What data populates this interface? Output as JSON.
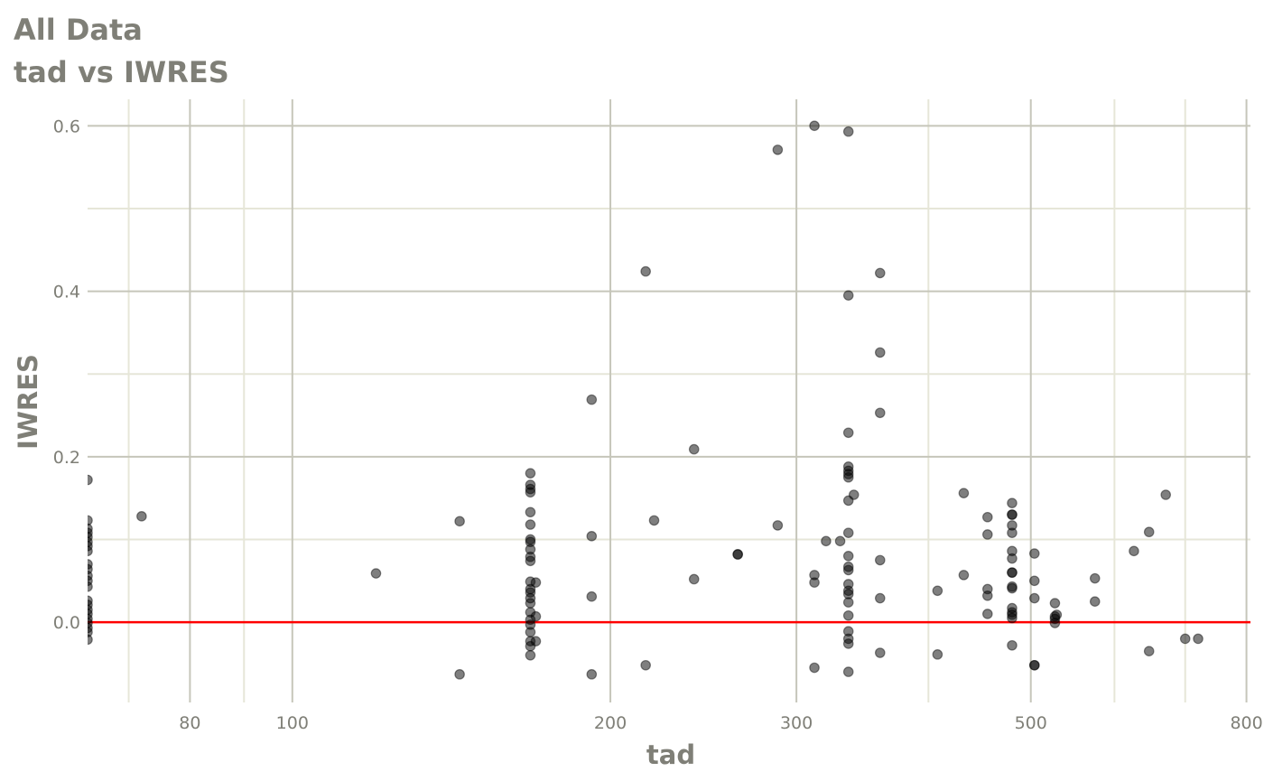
{
  "chart_data": {
    "type": "scatter",
    "title": "All Data",
    "subtitle": "tad vs IWRES",
    "xlabel": "tad",
    "ylabel": "IWRES",
    "x_scale": "log",
    "xlim": [
      64,
      807
    ],
    "ylim": [
      -0.097,
      0.632
    ],
    "grid": true,
    "x_major_ticks": [
      80,
      100,
      200,
      300,
      500,
      800
    ],
    "x_tick_labels": [
      "80",
      "100",
      "200",
      "300",
      "500",
      "800"
    ],
    "x_minor_ticks": [
      70,
      90,
      400,
      600,
      700
    ],
    "y_major_ticks": [
      0.0,
      0.2,
      0.4,
      0.6
    ],
    "y_tick_labels": [
      "0.0",
      "0.2",
      "0.4",
      "0.6"
    ],
    "y_minor_ticks": [
      0.1,
      0.3,
      0.5
    ],
    "reference_line": {
      "y": 0,
      "color": "#ff0000"
    },
    "point_color": "#000000",
    "point_alpha": 0.5,
    "points": [
      [
        64,
        0.172
      ],
      [
        64,
        0.123
      ],
      [
        64,
        0.113
      ],
      [
        64,
        0.108
      ],
      [
        64,
        0.103
      ],
      [
        64,
        0.097
      ],
      [
        64,
        0.092
      ],
      [
        64,
        0.086
      ],
      [
        64,
        0.07
      ],
      [
        64,
        0.064
      ],
      [
        64,
        0.056
      ],
      [
        64,
        0.05
      ],
      [
        64,
        0.043
      ],
      [
        64,
        0.026
      ],
      [
        64,
        0.021
      ],
      [
        64,
        0.015
      ],
      [
        64,
        0.01
      ],
      [
        64,
        0.004
      ],
      [
        64,
        -0.001
      ],
      [
        64,
        -0.007
      ],
      [
        64,
        -0.012
      ],
      [
        64,
        -0.021
      ],
      [
        72,
        0.128
      ],
      [
        120,
        0.059
      ],
      [
        144,
        0.122
      ],
      [
        144,
        -0.063
      ],
      [
        168,
        0.18
      ],
      [
        168,
        0.166
      ],
      [
        168,
        0.161
      ],
      [
        168,
        0.157
      ],
      [
        168,
        0.133
      ],
      [
        168,
        0.118
      ],
      [
        168,
        0.1
      ],
      [
        168,
        0.097
      ],
      [
        168,
        0.088
      ],
      [
        168,
        0.079
      ],
      [
        168,
        0.074
      ],
      [
        168,
        0.049
      ],
      [
        168,
        0.04
      ],
      [
        168,
        0.036
      ],
      [
        168,
        0.029
      ],
      [
        168,
        0.023
      ],
      [
        168,
        0.012
      ],
      [
        168,
        0.003
      ],
      [
        168,
        -0.003
      ],
      [
        168,
        -0.012
      ],
      [
        168,
        -0.023
      ],
      [
        168,
        -0.029
      ],
      [
        168,
        -0.04
      ],
      [
        170,
        0.048
      ],
      [
        170,
        0.007
      ],
      [
        170,
        -0.023
      ],
      [
        192,
        0.269
      ],
      [
        192,
        0.104
      ],
      [
        192,
        0.031
      ],
      [
        192,
        -0.063
      ],
      [
        216,
        0.424
      ],
      [
        216,
        -0.052
      ],
      [
        220,
        0.123
      ],
      [
        240,
        0.209
      ],
      [
        240,
        0.052
      ],
      [
        264,
        0.082
      ],
      [
        264,
        0.082
      ],
      [
        288,
        0.571
      ],
      [
        288,
        0.117
      ],
      [
        312,
        0.6
      ],
      [
        312,
        0.057
      ],
      [
        312,
        0.048
      ],
      [
        312,
        -0.055
      ],
      [
        320,
        0.098
      ],
      [
        330,
        0.098
      ],
      [
        336,
        0.593
      ],
      [
        336,
        0.395
      ],
      [
        336,
        0.229
      ],
      [
        336,
        0.188
      ],
      [
        336,
        0.183
      ],
      [
        336,
        0.179
      ],
      [
        336,
        0.175
      ],
      [
        336,
        0.147
      ],
      [
        336,
        0.108
      ],
      [
        336,
        0.08
      ],
      [
        336,
        0.067
      ],
      [
        336,
        0.063
      ],
      [
        336,
        0.046
      ],
      [
        336,
        0.038
      ],
      [
        336,
        0.034
      ],
      [
        336,
        0.024
      ],
      [
        336,
        0.008
      ],
      [
        336,
        -0.011
      ],
      [
        336,
        -0.02
      ],
      [
        336,
        -0.026
      ],
      [
        336,
        -0.06
      ],
      [
        340,
        0.154
      ],
      [
        360,
        0.422
      ],
      [
        360,
        0.326
      ],
      [
        360,
        0.253
      ],
      [
        360,
        0.075
      ],
      [
        360,
        0.029
      ],
      [
        360,
        -0.037
      ],
      [
        408,
        0.038
      ],
      [
        408,
        -0.039
      ],
      [
        432,
        0.156
      ],
      [
        432,
        0.057
      ],
      [
        455,
        0.127
      ],
      [
        455,
        0.106
      ],
      [
        455,
        0.04
      ],
      [
        455,
        0.032
      ],
      [
        455,
        0.01
      ],
      [
        480,
        0.144
      ],
      [
        480,
        0.13
      ],
      [
        480,
        0.13
      ],
      [
        480,
        0.117
      ],
      [
        480,
        0.108
      ],
      [
        480,
        0.086
      ],
      [
        480,
        0.077
      ],
      [
        480,
        0.06
      ],
      [
        480,
        0.06
      ],
      [
        480,
        0.043
      ],
      [
        480,
        0.041
      ],
      [
        480,
        0.017
      ],
      [
        480,
        0.012
      ],
      [
        480,
        0.009
      ],
      [
        480,
        0.005
      ],
      [
        480,
        -0.028
      ],
      [
        504,
        0.083
      ],
      [
        504,
        0.05
      ],
      [
        504,
        0.029
      ],
      [
        504,
        -0.052
      ],
      [
        504,
        -0.052
      ],
      [
        527,
        0.023
      ],
      [
        527,
        0.007
      ],
      [
        527,
        0.004
      ],
      [
        527,
        -0.001
      ],
      [
        529,
        0.009
      ],
      [
        575,
        0.053
      ],
      [
        575,
        0.025
      ],
      [
        626,
        0.086
      ],
      [
        647,
        0.109
      ],
      [
        647,
        -0.035
      ],
      [
        671,
        0.154
      ],
      [
        700,
        -0.02
      ],
      [
        720,
        -0.02
      ]
    ]
  }
}
